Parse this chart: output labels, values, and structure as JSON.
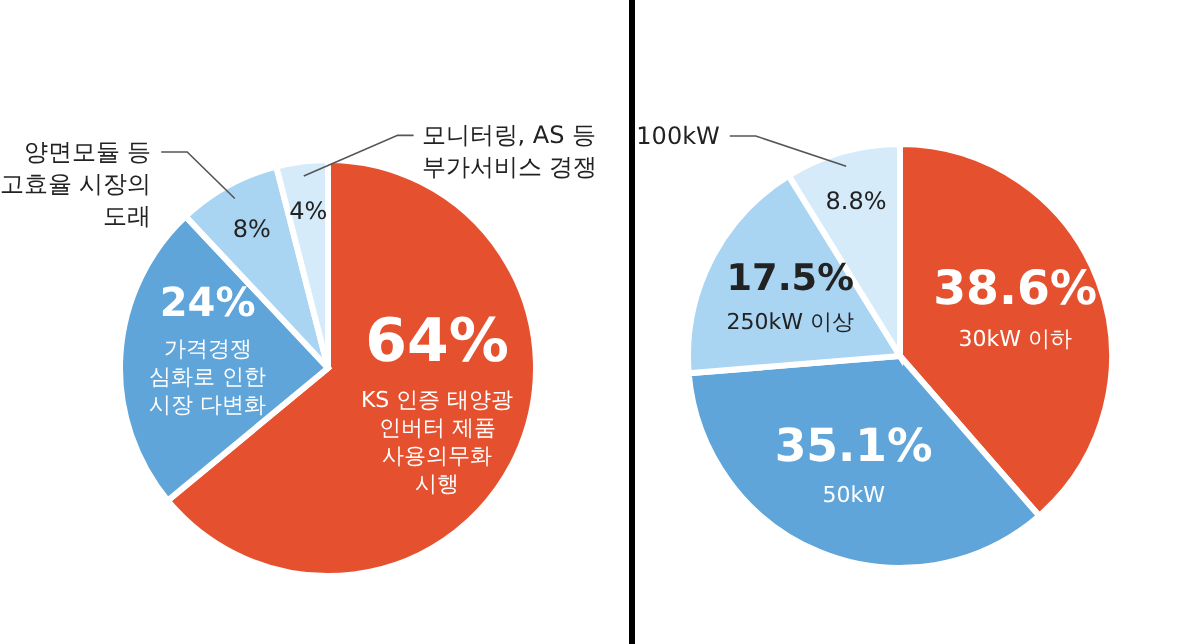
{
  "chart_data": [
    {
      "type": "pie",
      "categories": [
        "KS 인증 태양광\n인버터 제품\n사용의무화\n시행",
        "가격경쟁\n심화로 인한\n시장 다변화",
        "양면모듈 등\n고효율 시장의\n도래",
        "모니터링, AS 등\n부가서비스 경쟁"
      ],
      "values": [
        64,
        24,
        8,
        4
      ],
      "value_labels": [
        "64%",
        "24%",
        "8%",
        "4%"
      ],
      "colors": [
        "#e5512f",
        "#5fa5da",
        "#a9d5f3",
        "#d6ebf9"
      ]
    },
    {
      "type": "pie",
      "categories": [
        "30kW 이하",
        "50kW",
        "250kW 이상",
        "100kW"
      ],
      "values": [
        38.6,
        35.1,
        17.5,
        8.8
      ],
      "value_labels": [
        "38.6%",
        "35.1%",
        "17.5%",
        "8.8%"
      ],
      "colors": [
        "#e5512f",
        "#5fa5da",
        "#a9d5f3",
        "#d6ebf9"
      ]
    }
  ]
}
